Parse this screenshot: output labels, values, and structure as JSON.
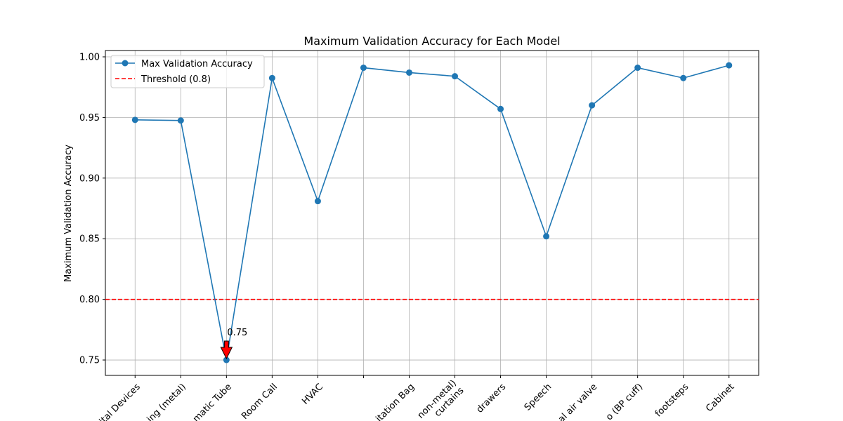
{
  "chart_data": {
    "type": "line",
    "title": "Maximum Validation Accuracy for Each Model",
    "y_label": "Maximum Validation Accuracy",
    "categories": [
      "ital Devices",
      "ing (metal)",
      "matic Tube",
      "Room Call",
      "HVAC",
      null,
      "itation Bag",
      "non-metal)\ncurtains",
      "drawers",
      "Speech",
      "al air valve",
      "o (BP cuff)",
      "footsteps",
      "Cabinet"
    ],
    "series": [
      {
        "name": "Max Validation Accuracy",
        "color": "#1f77b4",
        "values": [
          0.948,
          0.9475,
          0.75,
          0.9825,
          0.881,
          0.991,
          0.987,
          0.984,
          0.957,
          0.852,
          0.96,
          0.991,
          0.9825,
          0.993
        ]
      }
    ],
    "threshold": {
      "name": "Threshold (0.8)",
      "value": 0.8,
      "color": "#ff0000"
    },
    "annotation": {
      "text": "0.75",
      "x": 2,
      "y": 0.75,
      "color": "#ff0000"
    },
    "xlim": [
      -0.65,
      13.65
    ],
    "ylim": [
      0.7373,
      1.0052
    ],
    "yticks": [
      {
        "value": 0.75,
        "label": "0.75"
      },
      {
        "value": 0.8,
        "label": "0.80"
      },
      {
        "value": 0.85,
        "label": "0.85"
      },
      {
        "value": 0.9,
        "label": "0.90"
      },
      {
        "value": 0.95,
        "label": "0.95"
      },
      {
        "value": 1.0,
        "label": "1.00"
      }
    ],
    "grid": true,
    "legend": "upper left"
  }
}
